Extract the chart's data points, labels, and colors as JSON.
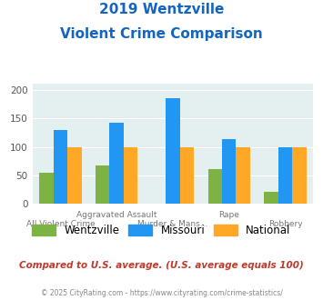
{
  "title_line1": "2019 Wentzville",
  "title_line2": "Violent Crime Comparison",
  "categories": [
    "All Violent Crime",
    "Aggravated Assault",
    "Murder & Mans...",
    "Rape",
    "Robbery"
  ],
  "wentzville": [
    55,
    67,
    0,
    61,
    22
  ],
  "missouri": [
    130,
    142,
    185,
    113,
    100
  ],
  "national": [
    100,
    100,
    100,
    100,
    100
  ],
  "colors": {
    "wentzville": "#7cb342",
    "missouri": "#2196f3",
    "national": "#ffa726"
  },
  "ylim": [
    0,
    210
  ],
  "yticks": [
    0,
    50,
    100,
    150,
    200
  ],
  "background_color": "#e4eff0",
  "title_color": "#1565c0",
  "subtitle_note": "Compared to U.S. average. (U.S. average equals 100)",
  "footer": "© 2025 CityRating.com - https://www.cityrating.com/crime-statistics/",
  "subtitle_color": "#c0392b",
  "footer_color": "#888888",
  "xtick_row1": [
    "",
    "Aggravated Assault",
    "",
    "Rape",
    ""
  ],
  "xtick_row2": [
    "All Violent Crime",
    "",
    "Murder & Mans...",
    "",
    "Robbery"
  ]
}
